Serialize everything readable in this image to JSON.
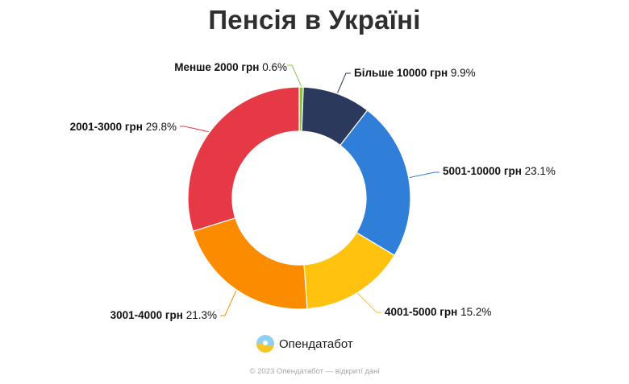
{
  "chart_data": {
    "type": "pie",
    "title": "Пенсія в Україні",
    "series": [
      {
        "name": "Менше 2000 грн",
        "value": 0.6,
        "display": "0.6%",
        "color": "#8bc34a"
      },
      {
        "name": "Більше 10000 грн",
        "value": 9.9,
        "display": "9.9%",
        "color": "#2b3a5c"
      },
      {
        "name": "5001-10000 грн",
        "value": 23.1,
        "display": "23.1%",
        "color": "#2f7fd9"
      },
      {
        "name": "4001-5000 грн",
        "value": 15.2,
        "display": "15.2%",
        "color": "#ffc20e"
      },
      {
        "name": "3001-4000 грн",
        "value": 21.3,
        "display": "21.3%",
        "color": "#fb8c00"
      },
      {
        "name": "2001-3000 грн",
        "value": 29.8,
        "display": "29.8%",
        "color": "#e53945"
      }
    ]
  },
  "brand": {
    "name": "Опендатабот",
    "icon": "opendatabot-logo-icon"
  },
  "footer": "© 2023 Опендатабот — відкриті дані"
}
